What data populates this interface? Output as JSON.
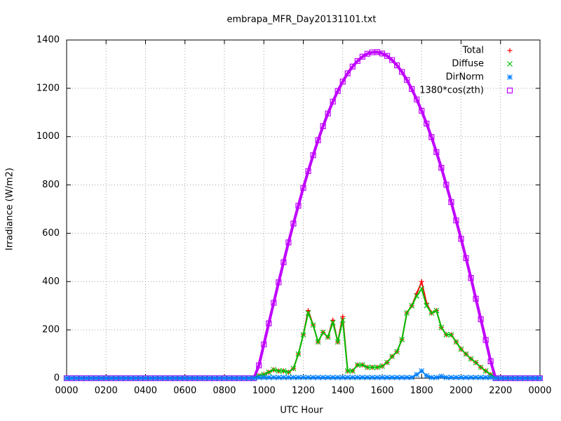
{
  "chart_data": {
    "type": "scatter",
    "title": "embrapa_MFR_Day20131101.txt",
    "x_label": "UTC Hour",
    "y_label": "Irradiance (W/m2)",
    "x": [
      0,
      0.25,
      0.5,
      0.75,
      1,
      1.25,
      1.5,
      1.75,
      2,
      2.25,
      2.5,
      2.75,
      3,
      3.25,
      3.5,
      3.75,
      4,
      4.25,
      4.5,
      4.75,
      5,
      5.25,
      5.5,
      5.75,
      6,
      6.25,
      6.5,
      6.75,
      7,
      7.25,
      7.5,
      7.75,
      8,
      8.25,
      8.5,
      8.75,
      9,
      9.25,
      9.5,
      9.75,
      10,
      10.25,
      10.5,
      10.75,
      11,
      11.25,
      11.5,
      11.75,
      12,
      12.25,
      12.5,
      12.75,
      13,
      13.25,
      13.5,
      13.75,
      14,
      14.25,
      14.5,
      14.75,
      15,
      15.25,
      15.5,
      15.75,
      16,
      16.25,
      16.5,
      16.75,
      17,
      17.25,
      17.5,
      17.75,
      18,
      18.25,
      18.5,
      18.75,
      19,
      19.25,
      19.5,
      19.75,
      20,
      20.25,
      20.5,
      20.75,
      21,
      21.25,
      21.5,
      21.75,
      22,
      22.25,
      22.5,
      22.75,
      23,
      23.25,
      23.5,
      23.75,
      24
    ],
    "series": [
      {
        "name": "Total",
        "color": "#ff0000",
        "marker": "plus",
        "values": [
          0,
          0,
          0,
          0,
          0,
          0,
          0,
          0,
          0,
          0,
          0,
          0,
          0,
          0,
          0,
          0,
          0,
          0,
          0,
          0,
          0,
          0,
          0,
          0,
          0,
          0,
          0,
          0,
          0,
          0,
          0,
          0,
          0,
          0,
          0,
          0,
          0,
          0,
          0,
          10,
          15,
          25,
          35,
          30,
          30,
          25,
          40,
          100,
          180,
          280,
          220,
          150,
          190,
          170,
          240,
          150,
          255,
          30,
          30,
          55,
          55,
          45,
          45,
          45,
          50,
          65,
          90,
          110,
          160,
          270,
          300,
          350,
          400,
          310,
          270,
          280,
          210,
          180,
          180,
          150,
          120,
          100,
          80,
          65,
          45,
          30,
          15,
          0,
          0,
          0,
          0,
          0,
          0,
          0,
          0,
          0,
          0
        ]
      },
      {
        "name": "Diffuse",
        "color": "#00c000",
        "marker": "cross",
        "values": [
          0,
          0,
          0,
          0,
          0,
          0,
          0,
          0,
          0,
          0,
          0,
          0,
          0,
          0,
          0,
          0,
          0,
          0,
          0,
          0,
          0,
          0,
          0,
          0,
          0,
          0,
          0,
          0,
          0,
          0,
          0,
          0,
          0,
          0,
          0,
          0,
          0,
          0,
          0,
          10,
          15,
          25,
          35,
          30,
          30,
          25,
          40,
          100,
          180,
          270,
          220,
          150,
          190,
          170,
          230,
          150,
          240,
          30,
          30,
          55,
          55,
          45,
          45,
          45,
          50,
          65,
          90,
          110,
          160,
          270,
          300,
          340,
          370,
          300,
          270,
          280,
          210,
          180,
          180,
          150,
          120,
          100,
          80,
          65,
          45,
          30,
          15,
          0,
          0,
          0,
          0,
          0,
          0,
          0,
          0,
          0,
          0
        ]
      },
      {
        "name": "DirNorm",
        "color": "#0080ff",
        "marker": "star",
        "values": [
          0,
          0,
          0,
          0,
          0,
          0,
          0,
          0,
          0,
          0,
          0,
          0,
          0,
          0,
          0,
          0,
          0,
          0,
          0,
          0,
          0,
          0,
          0,
          0,
          0,
          0,
          0,
          0,
          0,
          0,
          0,
          0,
          0,
          0,
          0,
          0,
          0,
          0,
          0,
          3,
          3,
          3,
          3,
          3,
          3,
          3,
          3,
          3,
          3,
          3,
          3,
          3,
          3,
          3,
          3,
          3,
          3,
          3,
          3,
          3,
          3,
          3,
          3,
          3,
          3,
          3,
          3,
          3,
          3,
          3,
          3,
          15,
          30,
          10,
          3,
          3,
          8,
          3,
          3,
          3,
          3,
          3,
          3,
          3,
          3,
          3,
          3,
          0,
          0,
          0,
          0,
          0,
          0,
          0,
          0,
          0,
          0
        ]
      },
      {
        "name": "1380*cos(zth)",
        "color": "#c000ff",
        "marker": "square",
        "values": [
          0,
          0,
          0,
          0,
          0,
          0,
          0,
          0,
          0,
          0,
          0,
          0,
          0,
          0,
          0,
          0,
          0,
          0,
          0,
          0,
          0,
          0,
          0,
          0,
          0,
          0,
          0,
          0,
          0,
          0,
          0,
          0,
          0,
          0,
          0,
          0,
          0,
          0,
          0,
          53,
          140,
          227,
          312,
          397,
          480,
          562,
          640,
          714,
          788,
          857,
          923,
          985,
          1043,
          1096,
          1145,
          1189,
          1228,
          1262,
          1290,
          1313,
          1331,
          1343,
          1349,
          1350,
          1344,
          1334,
          1317,
          1295,
          1268,
          1235,
          1197,
          1154,
          1107,
          1054,
          998,
          936,
          871,
          801,
          729,
          653,
          577,
          497,
          415,
          329,
          244,
          158,
          70,
          0,
          0,
          0,
          0,
          0,
          0,
          0,
          0,
          0,
          0
        ]
      }
    ],
    "xlim": [
      0,
      24
    ],
    "xticks": [
      {
        "value": 0,
        "label": "0000"
      },
      {
        "value": 2,
        "label": "0200"
      },
      {
        "value": 4,
        "label": "0400"
      },
      {
        "value": 6,
        "label": "0600"
      },
      {
        "value": 8,
        "label": "0800"
      },
      {
        "value": 10,
        "label": "1000"
      },
      {
        "value": 12,
        "label": "1200"
      },
      {
        "value": 14,
        "label": "1400"
      },
      {
        "value": 16,
        "label": "1600"
      },
      {
        "value": 18,
        "label": "1800"
      },
      {
        "value": 20,
        "label": "2000"
      },
      {
        "value": 22,
        "label": "2200"
      },
      {
        "value": 24,
        "label": "0000"
      }
    ],
    "ylim": [
      0,
      1400
    ],
    "yticks": [
      0,
      200,
      400,
      600,
      800,
      1000,
      1200,
      1400
    ],
    "grid": true,
    "legend": "top-right"
  }
}
